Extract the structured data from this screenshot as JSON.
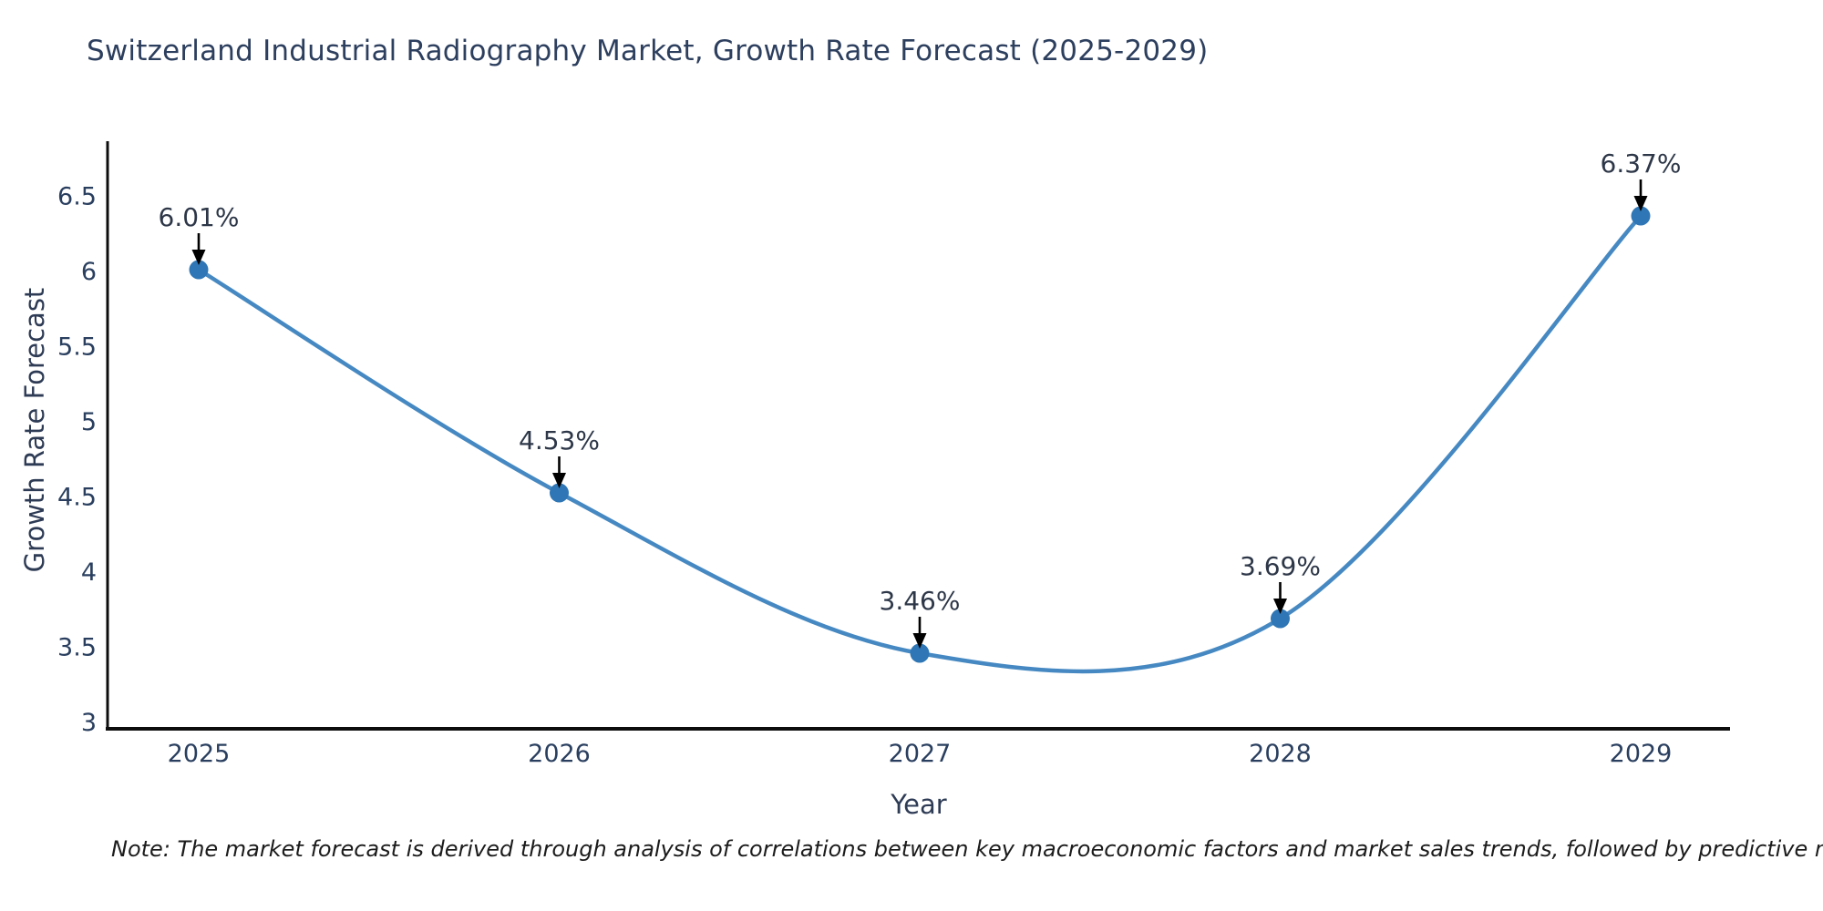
{
  "chart_data": {
    "type": "line",
    "title": "Switzerland Industrial Radiography Market, Growth Rate Forecast (2025-2029)",
    "xlabel": "Year",
    "ylabel": "Growth Rate Forecast",
    "categories": [
      "2025",
      "2026",
      "2027",
      "2028",
      "2029"
    ],
    "series": [
      {
        "name": "Growth Rate Forecast",
        "values": [
          6.01,
          4.53,
          3.46,
          3.69,
          6.37
        ],
        "point_labels": [
          "6.01%",
          "4.53%",
          "3.46%",
          "3.69%",
          "6.37%"
        ]
      }
    ],
    "line_shape": "spline",
    "grid": false,
    "legend_position": "none",
    "ylim": [
      3,
      6.75
    ],
    "yticks": [
      "3",
      "3.5",
      "4",
      "4.5",
      "5",
      "5.5",
      "6",
      "6.5"
    ],
    "colors": {
      "line": "#4689c2",
      "marker": "#2e76b5",
      "axis_line": "#0d0d0d",
      "tick_text": "#2a3f5f",
      "annotation_text": "#2d3748",
      "arrow": "#000000"
    }
  },
  "note": {
    "text": "Note: The market forecast is derived through analysis of correlations between key macroeconomic factors and market sales trends, followed by predictive modeling to project future sales"
  }
}
